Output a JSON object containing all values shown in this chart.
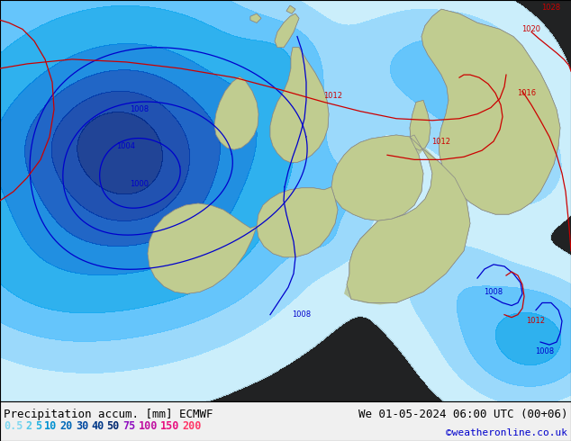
{
  "title_left": "Precipitation accum. [mm] ECMWF",
  "title_right": "We 01-05-2024 06:00 UTC (00+06)",
  "credit": "©weatheronline.co.uk",
  "legend_values": [
    "0.5",
    "2",
    "5",
    "10",
    "20",
    "30",
    "40",
    "50",
    "75",
    "100",
    "150",
    "200"
  ],
  "legend_colors": [
    "#c8f0ff",
    "#90d8ff",
    "#50c0ff",
    "#10a8f0",
    "#0080e0",
    "#0050c0",
    "#0038a8",
    "#002888",
    "#b010d0",
    "#e010b0",
    "#ff2090",
    "#ff5070"
  ],
  "ocean_color": "#e0e8f0",
  "land_color": "#b8c8b0",
  "bg_color": "#dde4e8",
  "bottom_bar_color": "#f0f0f0",
  "title_fontsize": 9,
  "legend_fontsize": 8.5,
  "credit_color": "#0000cc",
  "title_color": "#000000",
  "precip_levels": [
    0.5,
    2,
    5,
    10,
    20,
    30,
    40,
    50,
    75,
    100,
    150,
    200,
    300
  ],
  "precip_colors": [
    "#c8f0ff",
    "#90d8ff",
    "#50c0ff",
    "#10a8f0",
    "#0080e0",
    "#0050c0",
    "#0038a8",
    "#002888",
    "#b010d0",
    "#e010b0",
    "#ff2090",
    "#ff5070"
  ]
}
